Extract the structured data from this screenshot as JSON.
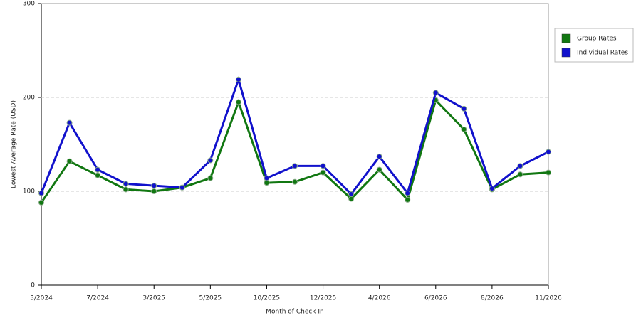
{
  "chart_data": {
    "type": "line",
    "y_label": "Lowest Average Rate (USD)",
    "x_label": "Month of Check In",
    "categories": [
      "3/2024",
      null,
      "7/2024",
      null,
      "3/2025",
      null,
      "5/2025",
      null,
      "10/2025",
      null,
      "12/2025",
      null,
      "4/2026",
      null,
      "6/2026",
      null,
      "8/2026",
      null,
      "11/2026"
    ],
    "series": [
      {
        "name": "Group Rates",
        "color": "#117711",
        "values": [
          88,
          132,
          117,
          102,
          100,
          104,
          114,
          195,
          109,
          110,
          120,
          92,
          123,
          91,
          197,
          166,
          102,
          118,
          120
        ]
      },
      {
        "name": "Individual Rates",
        "color": "#1111cc",
        "values": [
          98,
          173,
          123,
          108,
          106,
          104,
          133,
          219,
          114,
          127,
          127,
          97,
          137,
          98,
          205,
          188,
          103,
          127,
          142
        ]
      }
    ],
    "ylim": [
      0,
      300
    ],
    "yticks": [
      0,
      100,
      200,
      300
    ],
    "grid": true,
    "legend": "right"
  }
}
